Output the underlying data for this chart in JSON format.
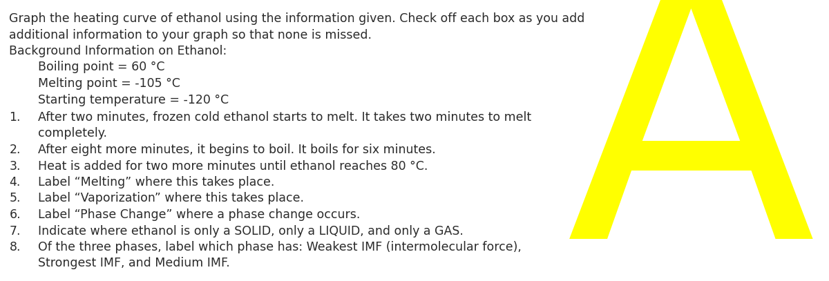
{
  "background_color": "#ffffff",
  "text_color": "#2a2a2a",
  "letter": "A",
  "letter_color": "#ffff00",
  "letter_fontsize": 380,
  "title_lines": [
    "Graph the heating curve of ethanol using the information given. Check off each box as you add",
    "additional information to your graph so that none is missed.",
    "Background Information on Ethanol:"
  ],
  "indented_lines": [
    "Boiling point = 60 °C",
    "Melting point = -105 °C",
    "Starting temperature = -120 °C"
  ],
  "numbered_lines": [
    [
      "After two minutes, frozen cold ethanol starts to melt. It takes two minutes to melt",
      "completely."
    ],
    [
      "After eight more minutes, it begins to boil. It boils for six minutes."
    ],
    [
      "Heat is added for two more minutes until ethanol reaches 80 °C."
    ],
    [
      "Label “Melting” where this takes place."
    ],
    [
      "Label “Vaporization” where this takes place."
    ],
    [
      "Label “Phase Change” where a phase change occurs."
    ],
    [
      "Indicate where ethanol is only a SOLID, only a LIQUID, and only a GAS."
    ],
    [
      "Of the three phases, label which phase has: Weakest IMF (intermolecular force),",
      "Strongest IMF, and Medium IMF."
    ]
  ],
  "font_family": "DejaVu Sans",
  "main_fontsize": 12.5,
  "fig_width": 12.0,
  "fig_height": 4.07,
  "dpi": 100
}
